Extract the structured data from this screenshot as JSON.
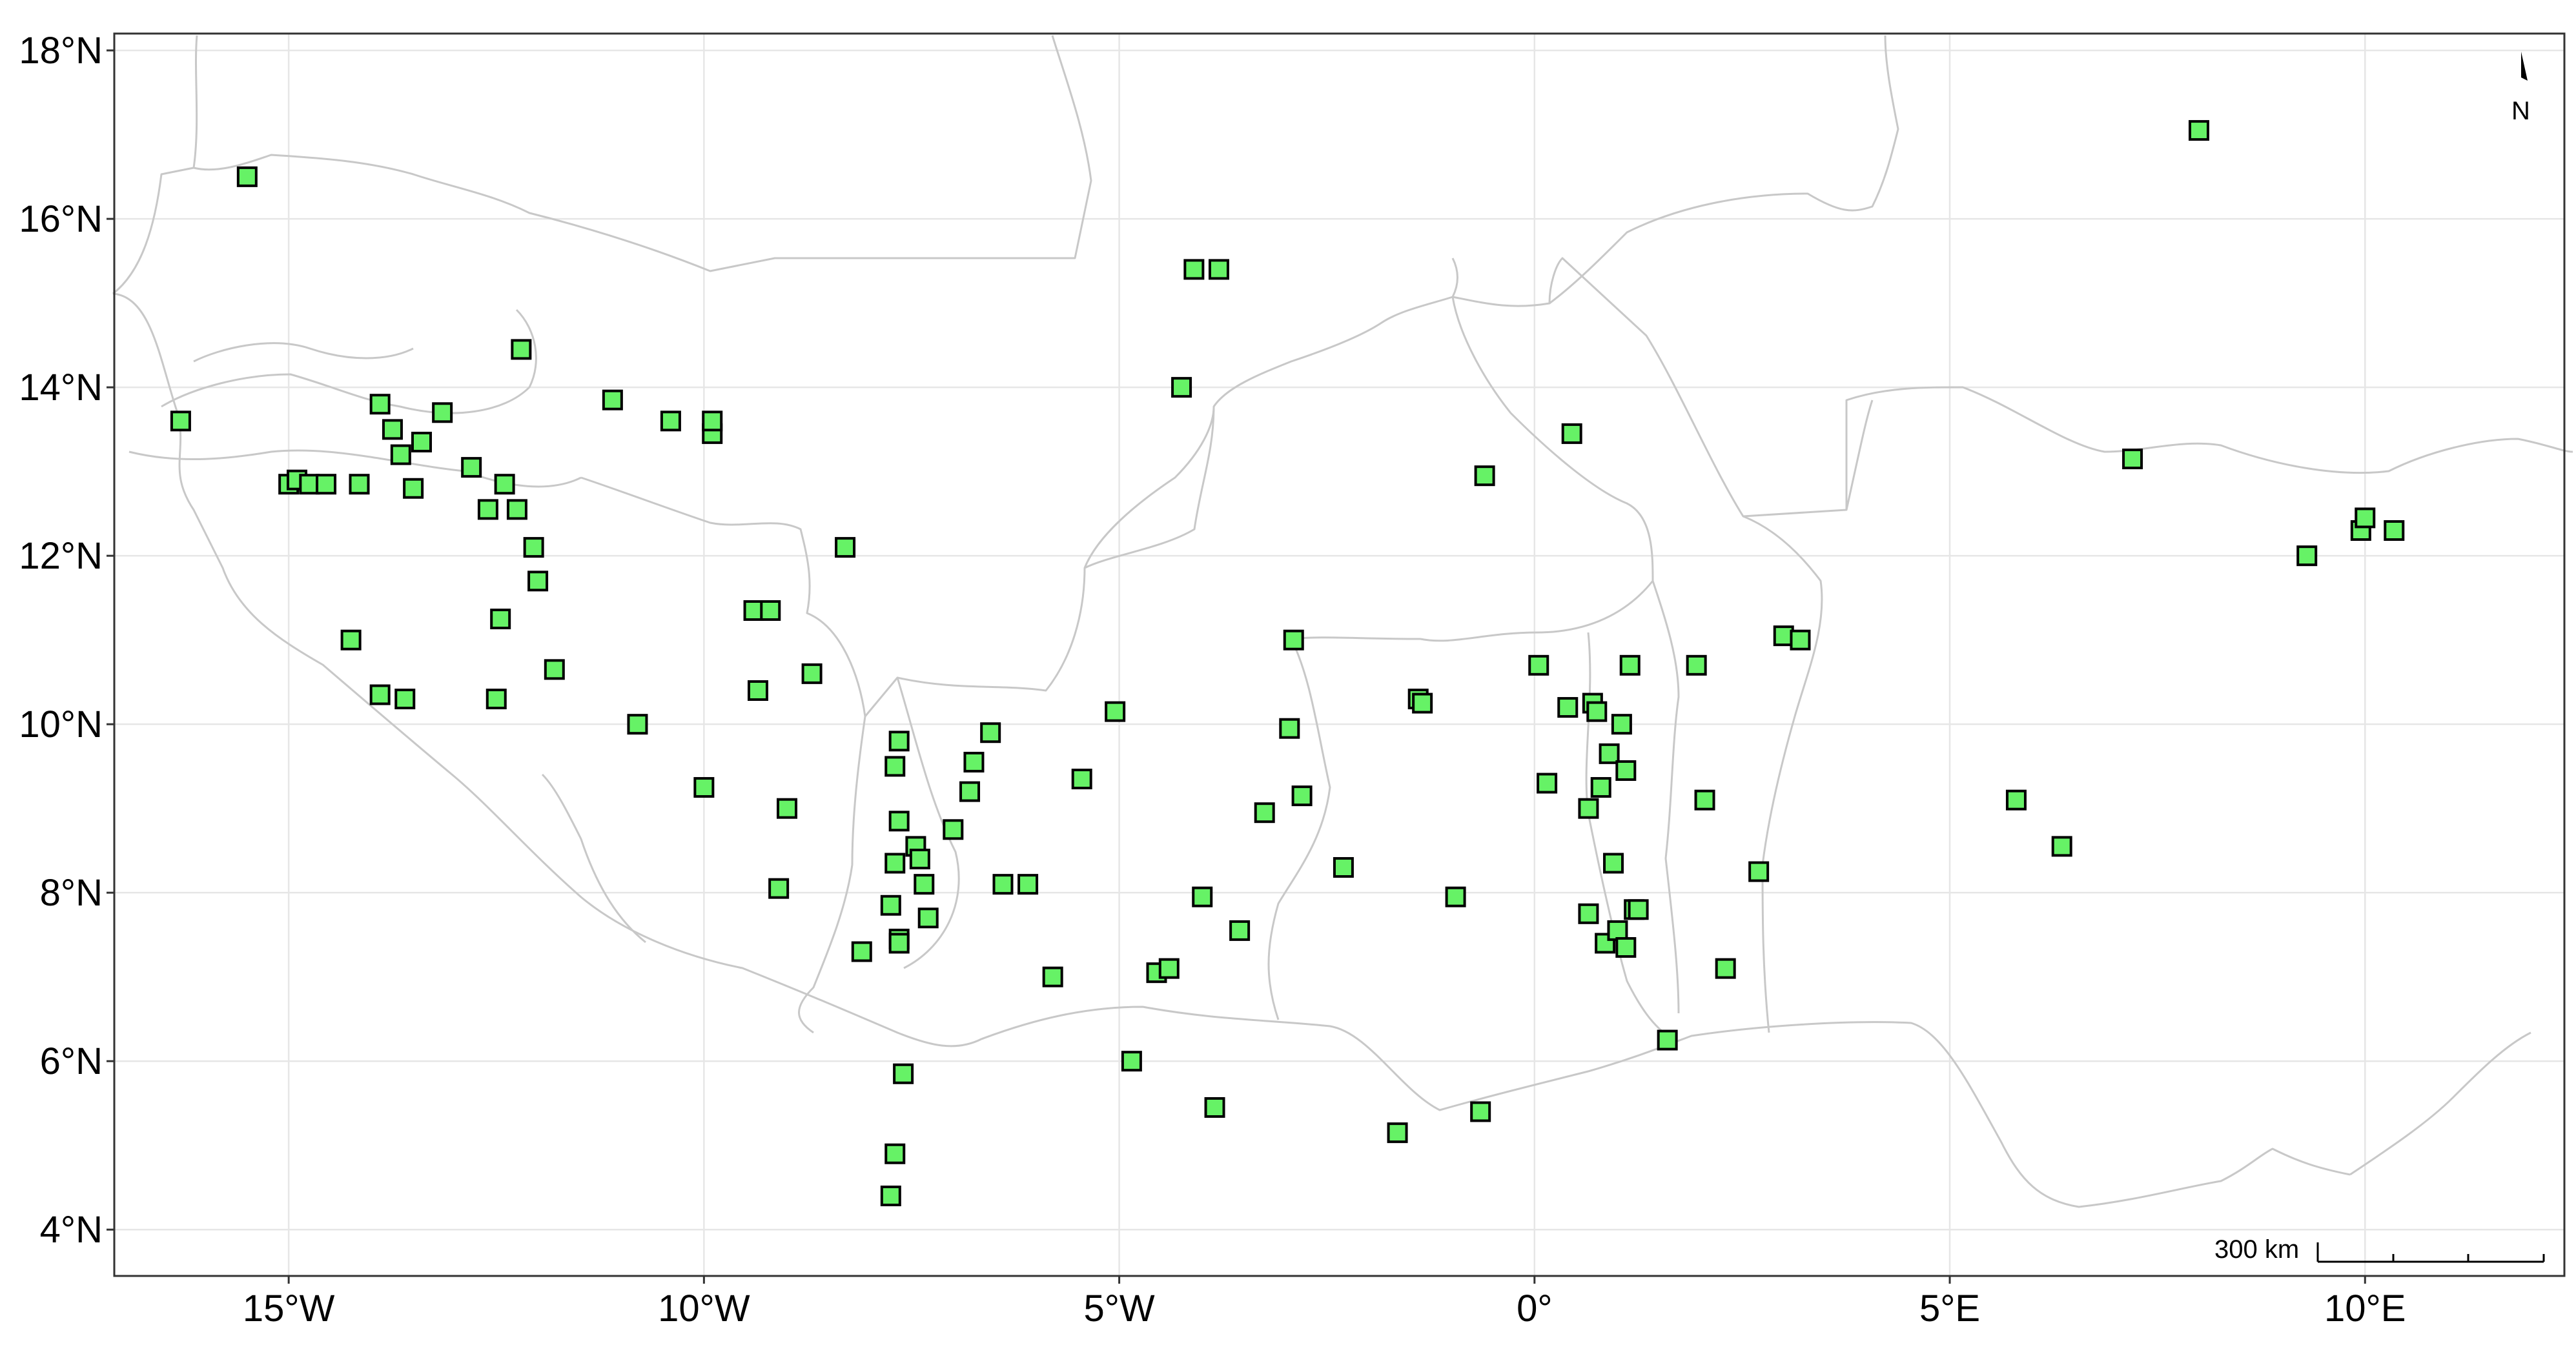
{
  "map": {
    "x_tick_labels": [
      {
        "lon": -15,
        "label": "15°W"
      },
      {
        "lon": -10,
        "label": "10°W"
      },
      {
        "lon": -5,
        "label": "5°W"
      },
      {
        "lon": 0,
        "label": "0°"
      },
      {
        "lon": 5,
        "label": "5°E"
      },
      {
        "lon": 10,
        "label": "10°E"
      }
    ],
    "y_tick_labels": [
      {
        "lat": 18,
        "label": "18°N"
      },
      {
        "lat": 16,
        "label": "16°N"
      },
      {
        "lat": 14,
        "label": "14°N"
      },
      {
        "lat": 12,
        "label": "12°N"
      },
      {
        "lat": 10,
        "label": "10°N"
      },
      {
        "lat": 8,
        "label": "8°N"
      },
      {
        "lat": 6,
        "label": "6°N"
      },
      {
        "lat": 4,
        "label": "4°N"
      }
    ],
    "lon_range": [
      -17.1,
      12.4
    ],
    "lat_range": [
      3.45,
      18.2
    ],
    "north_arrow": "N",
    "scale_bar_label": "300 km",
    "colors": {
      "marker_fill": "#66f266",
      "marker_stroke": "#000000",
      "border": "#c8c8c8",
      "grid": "#e6e6e6"
    },
    "marker_shape": "square"
  },
  "chart_data": {
    "type": "scatter",
    "title": "",
    "xlabel": "",
    "ylabel": "",
    "xlim": [
      -17.1,
      12.4
    ],
    "ylim": [
      3.45,
      18.2
    ],
    "grid": true,
    "points": [
      [
        -15.5,
        16.5
      ],
      [
        -16.3,
        13.6
      ],
      [
        -15.0,
        12.85
      ],
      [
        -14.9,
        12.9
      ],
      [
        -14.75,
        12.85
      ],
      [
        -14.55,
        12.85
      ],
      [
        -14.15,
        12.85
      ],
      [
        -13.9,
        13.8
      ],
      [
        -13.75,
        13.5
      ],
      [
        -13.65,
        13.2
      ],
      [
        -13.4,
        13.35
      ],
      [
        -13.15,
        13.7
      ],
      [
        -13.5,
        12.8
      ],
      [
        -12.8,
        13.05
      ],
      [
        -12.6,
        12.55
      ],
      [
        -12.4,
        12.85
      ],
      [
        -12.25,
        12.55
      ],
      [
        -12.2,
        14.45
      ],
      [
        -12.05,
        12.1
      ],
      [
        -12.0,
        11.7
      ],
      [
        -12.45,
        11.25
      ],
      [
        -11.8,
        10.65
      ],
      [
        -14.25,
        11.0
      ],
      [
        -13.9,
        10.35
      ],
      [
        -13.6,
        10.3
      ],
      [
        -12.5,
        10.3
      ],
      [
        -11.1,
        13.85
      ],
      [
        -10.4,
        13.6
      ],
      [
        -9.9,
        13.45
      ],
      [
        -9.9,
        13.6
      ],
      [
        -10.8,
        10.0
      ],
      [
        -10.0,
        9.25
      ],
      [
        -9.4,
        11.35
      ],
      [
        -9.2,
        11.35
      ],
      [
        -9.35,
        10.4
      ],
      [
        -8.7,
        10.6
      ],
      [
        -8.3,
        12.1
      ],
      [
        -9.0,
        9.0
      ],
      [
        -9.1,
        8.05
      ],
      [
        -8.1,
        7.3
      ],
      [
        -7.75,
        7.85
      ],
      [
        -7.7,
        9.5
      ],
      [
        -7.65,
        9.8
      ],
      [
        -7.65,
        8.85
      ],
      [
        -7.7,
        8.35
      ],
      [
        -7.65,
        7.45
      ],
      [
        -7.65,
        7.4
      ],
      [
        -7.45,
        8.55
      ],
      [
        -7.4,
        8.4
      ],
      [
        -7.35,
        8.1
      ],
      [
        -7.3,
        7.7
      ],
      [
        -7.0,
        8.75
      ],
      [
        -6.8,
        9.2
      ],
      [
        -6.75,
        9.55
      ],
      [
        -6.55,
        9.9
      ],
      [
        -6.4,
        8.1
      ],
      [
        -6.1,
        8.1
      ],
      [
        -5.45,
        9.35
      ],
      [
        -5.8,
        7.0
      ],
      [
        -5.05,
        10.15
      ],
      [
        -4.85,
        6.0
      ],
      [
        -4.55,
        7.05
      ],
      [
        -4.4,
        7.1
      ],
      [
        -7.6,
        5.85
      ],
      [
        -7.7,
        4.9
      ],
      [
        -7.75,
        4.4
      ],
      [
        -4.25,
        14.0
      ],
      [
        -4.1,
        15.4
      ],
      [
        -3.8,
        15.4
      ],
      [
        -4.0,
        7.95
      ],
      [
        -3.55,
        7.55
      ],
      [
        -3.85,
        5.45
      ],
      [
        -3.25,
        8.95
      ],
      [
        -2.9,
        11.0
      ],
      [
        -2.95,
        9.95
      ],
      [
        -2.8,
        9.15
      ],
      [
        -2.3,
        8.3
      ],
      [
        -1.65,
        5.15
      ],
      [
        -1.4,
        10.3
      ],
      [
        -1.35,
        10.25
      ],
      [
        -0.95,
        7.95
      ],
      [
        -0.65,
        5.4
      ],
      [
        -0.6,
        12.95
      ],
      [
        0.05,
        10.7
      ],
      [
        0.15,
        9.3
      ],
      [
        0.4,
        10.2
      ],
      [
        0.45,
        13.45
      ],
      [
        0.65,
        9.0
      ],
      [
        0.65,
        7.75
      ],
      [
        0.7,
        10.25
      ],
      [
        0.75,
        10.15
      ],
      [
        0.8,
        9.25
      ],
      [
        0.85,
        7.4
      ],
      [
        0.9,
        9.65
      ],
      [
        0.95,
        8.35
      ],
      [
        1.0,
        7.55
      ],
      [
        1.05,
        10.0
      ],
      [
        1.1,
        9.45
      ],
      [
        1.1,
        7.35
      ],
      [
        1.15,
        10.7
      ],
      [
        1.2,
        7.8
      ],
      [
        1.25,
        7.8
      ],
      [
        1.6,
        6.25
      ],
      [
        1.95,
        10.7
      ],
      [
        2.05,
        9.1
      ],
      [
        2.3,
        7.1
      ],
      [
        2.7,
        8.25
      ],
      [
        3.0,
        11.05
      ],
      [
        3.2,
        11.0
      ],
      [
        5.8,
        9.1
      ],
      [
        6.35,
        8.55
      ],
      [
        7.2,
        13.15
      ],
      [
        8.0,
        17.05
      ],
      [
        9.3,
        12.0
      ],
      [
        9.95,
        12.3
      ],
      [
        10.0,
        12.45
      ],
      [
        10.35,
        12.3
      ]
    ]
  }
}
